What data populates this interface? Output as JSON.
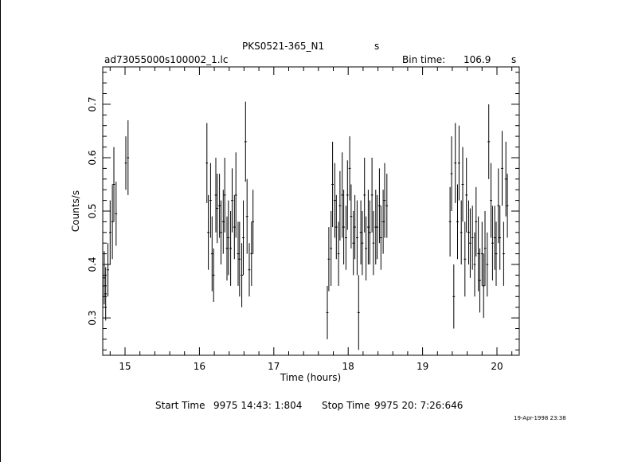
{
  "chart_data": {
    "type": "scatter",
    "title": "PKS0521-365_N1",
    "title_suffix": "s",
    "file_label": "ad73055000s100002_1.lc",
    "bin_time_label": "Bin time:",
    "bin_time_value": "106.9",
    "bin_time_unit": "s",
    "xlabel": "Time (hours)",
    "ylabel": "Counts/s",
    "xlim": [
      14.7,
      20.3
    ],
    "ylim": [
      0.23,
      0.77
    ],
    "x_ticks": [
      "15",
      "16",
      "17",
      "18",
      "19",
      "20"
    ],
    "y_ticks": [
      "0.3",
      "0.4",
      "0.5",
      "0.6",
      "0.7"
    ],
    "xerr": 0.0148,
    "series": [
      {
        "points": [
          [
            14.72,
            0.375,
            0.05
          ],
          [
            14.74,
            0.345,
            0.05
          ],
          [
            14.77,
            0.39,
            0.05
          ],
          [
            14.8,
            0.46,
            0.06
          ],
          [
            14.83,
            0.48,
            0.07
          ],
          [
            14.85,
            0.55,
            0.07
          ],
          [
            14.88,
            0.495,
            0.06
          ],
          [
            15.01,
            0.59,
            0.05
          ],
          [
            15.04,
            0.6,
            0.07
          ],
          [
            16.1,
            0.59,
            0.075
          ],
          [
            16.12,
            0.46,
            0.07
          ],
          [
            16.15,
            0.52,
            0.07
          ],
          [
            16.17,
            0.42,
            0.07
          ],
          [
            16.19,
            0.38,
            0.05
          ],
          [
            16.22,
            0.53,
            0.07
          ],
          [
            16.24,
            0.505,
            0.065
          ],
          [
            16.27,
            0.51,
            0.06
          ],
          [
            16.29,
            0.46,
            0.06
          ],
          [
            16.32,
            0.48,
            0.06
          ],
          [
            16.34,
            0.53,
            0.07
          ],
          [
            16.37,
            0.43,
            0.06
          ],
          [
            16.39,
            0.45,
            0.07
          ],
          [
            16.42,
            0.43,
            0.07
          ],
          [
            16.44,
            0.52,
            0.06
          ],
          [
            16.47,
            0.47,
            0.06
          ],
          [
            16.49,
            0.53,
            0.08
          ],
          [
            16.52,
            0.42,
            0.06
          ],
          [
            16.54,
            0.41,
            0.07
          ],
          [
            16.57,
            0.38,
            0.06
          ],
          [
            16.59,
            0.45,
            0.07
          ],
          [
            16.62,
            0.63,
            0.075
          ],
          [
            16.64,
            0.49,
            0.07
          ],
          [
            16.67,
            0.39,
            0.05
          ],
          [
            16.7,
            0.42,
            0.06
          ],
          [
            16.72,
            0.48,
            0.06
          ],
          [
            17.72,
            0.31,
            0.05
          ],
          [
            17.74,
            0.41,
            0.06
          ],
          [
            17.77,
            0.43,
            0.07
          ],
          [
            17.79,
            0.55,
            0.08
          ],
          [
            17.82,
            0.52,
            0.07
          ],
          [
            17.84,
            0.47,
            0.06
          ],
          [
            17.87,
            0.42,
            0.06
          ],
          [
            17.89,
            0.51,
            0.065
          ],
          [
            17.92,
            0.53,
            0.08
          ],
          [
            17.94,
            0.47,
            0.07
          ],
          [
            17.97,
            0.45,
            0.06
          ],
          [
            17.99,
            0.53,
            0.065
          ],
          [
            18.02,
            0.58,
            0.06
          ],
          [
            18.04,
            0.49,
            0.06
          ],
          [
            18.07,
            0.44,
            0.06
          ],
          [
            18.09,
            0.47,
            0.06
          ],
          [
            18.12,
            0.45,
            0.07
          ],
          [
            18.14,
            0.31,
            0.07
          ],
          [
            18.17,
            0.46,
            0.06
          ],
          [
            18.19,
            0.44,
            0.06
          ],
          [
            18.22,
            0.53,
            0.07
          ],
          [
            18.24,
            0.43,
            0.06
          ],
          [
            18.27,
            0.47,
            0.07
          ],
          [
            18.29,
            0.46,
            0.06
          ],
          [
            18.32,
            0.53,
            0.07
          ],
          [
            18.34,
            0.44,
            0.06
          ],
          [
            18.37,
            0.47,
            0.07
          ],
          [
            18.39,
            0.47,
            0.06
          ],
          [
            18.42,
            0.51,
            0.07
          ],
          [
            18.44,
            0.45,
            0.06
          ],
          [
            18.47,
            0.48,
            0.06
          ],
          [
            18.49,
            0.52,
            0.07
          ],
          [
            18.52,
            0.51,
            0.06
          ],
          [
            19.37,
            0.48,
            0.065
          ],
          [
            19.39,
            0.57,
            0.07
          ],
          [
            19.42,
            0.34,
            0.06
          ],
          [
            19.44,
            0.59,
            0.075
          ],
          [
            19.47,
            0.48,
            0.07
          ],
          [
            19.49,
            0.59,
            0.07
          ],
          [
            19.52,
            0.46,
            0.06
          ],
          [
            19.54,
            0.55,
            0.07
          ],
          [
            19.57,
            0.41,
            0.07
          ],
          [
            19.59,
            0.53,
            0.07
          ],
          [
            19.62,
            0.46,
            0.06
          ],
          [
            19.64,
            0.44,
            0.065
          ],
          [
            19.67,
            0.45,
            0.06
          ],
          [
            19.7,
            0.4,
            0.06
          ],
          [
            19.72,
            0.48,
            0.065
          ],
          [
            19.75,
            0.42,
            0.07
          ],
          [
            19.77,
            0.37,
            0.06
          ],
          [
            19.8,
            0.42,
            0.06
          ],
          [
            19.82,
            0.36,
            0.06
          ],
          [
            19.84,
            0.43,
            0.07
          ],
          [
            19.87,
            0.4,
            0.06
          ],
          [
            19.89,
            0.63,
            0.07
          ],
          [
            19.92,
            0.52,
            0.07
          ],
          [
            19.94,
            0.44,
            0.07
          ],
          [
            19.97,
            0.45,
            0.06
          ],
          [
            19.99,
            0.42,
            0.06
          ],
          [
            20.02,
            0.51,
            0.07
          ],
          [
            20.04,
            0.45,
            0.06
          ],
          [
            20.07,
            0.58,
            0.07
          ],
          [
            20.09,
            0.42,
            0.06
          ],
          [
            20.12,
            0.56,
            0.07
          ],
          [
            20.14,
            0.51,
            0.06
          ]
        ]
      }
    ]
  },
  "footer": {
    "start_time_label": "Start Time",
    "start_time_value": "9975 14:43: 1:804",
    "stop_time_label": "Stop Time",
    "stop_time_value": "9975 20: 7:26:646",
    "timestamp": "19-Apr-1998 23:38"
  }
}
